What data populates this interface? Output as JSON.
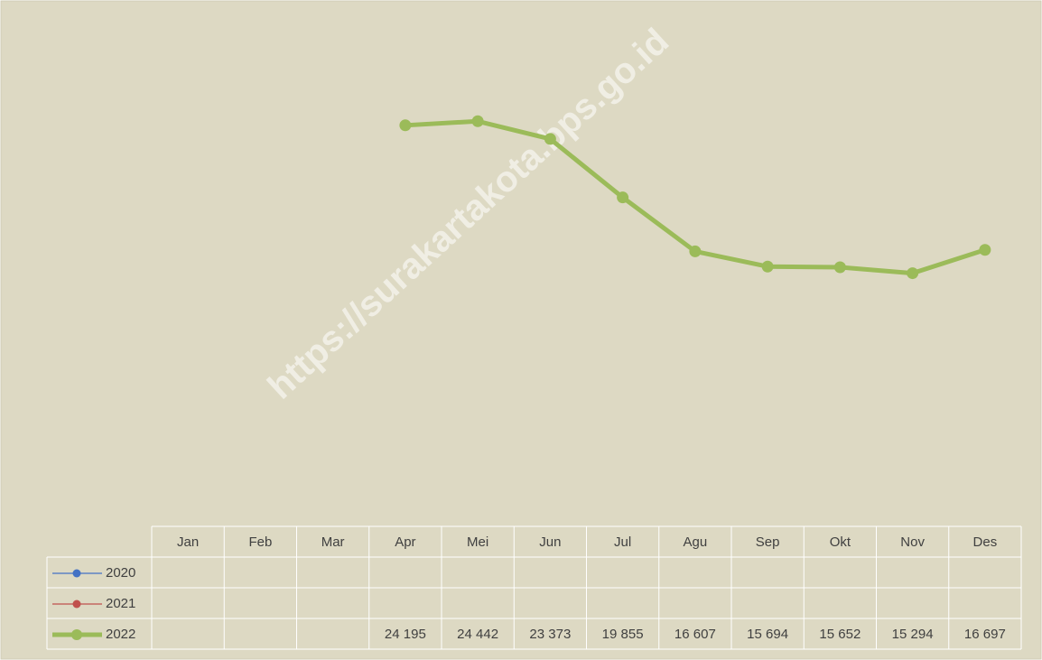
{
  "chart_data": {
    "type": "line",
    "categories": [
      "Jan",
      "Feb",
      "Mar",
      "Apr",
      "Mei",
      "Jun",
      "Jul",
      "Agu",
      "Sep",
      "Okt",
      "Nov",
      "Des"
    ],
    "series": [
      {
        "name": "2020",
        "color": "#4472c4",
        "values": [
          null,
          null,
          null,
          null,
          null,
          null,
          null,
          null,
          null,
          null,
          null,
          null
        ]
      },
      {
        "name": "2021",
        "color": "#c0504d",
        "values": [
          null,
          null,
          null,
          null,
          null,
          null,
          null,
          null,
          null,
          null,
          null,
          null
        ]
      },
      {
        "name": "2022",
        "color": "#9bbb59",
        "values": [
          null,
          null,
          null,
          24195,
          24442,
          23373,
          19855,
          16607,
          15694,
          15652,
          15294,
          16697
        ],
        "value_labels": [
          null,
          null,
          null,
          "24 195",
          "24 442",
          "23 373",
          "19 855",
          "16 607",
          "15 694",
          "15 652",
          "15 294",
          "16 697"
        ]
      }
    ],
    "ylim": [
      0,
      30000
    ],
    "watermark": "https://surakartakota.bps.go.id"
  }
}
